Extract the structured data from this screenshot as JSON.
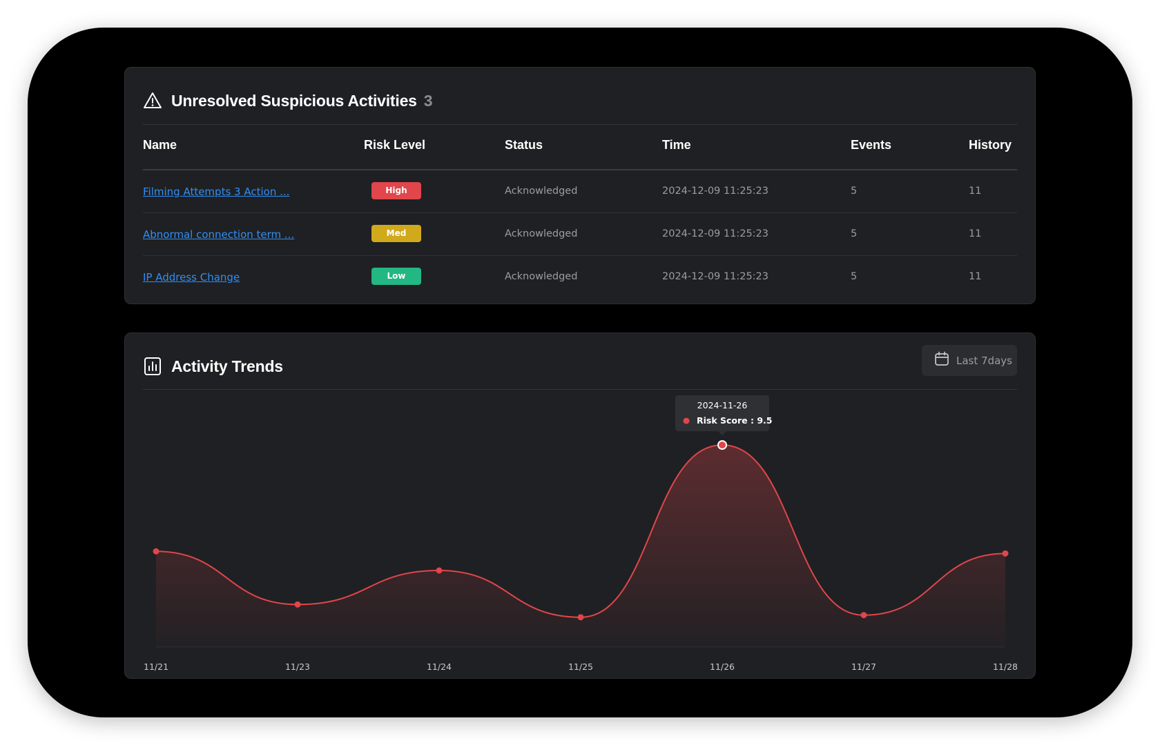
{
  "suspicious": {
    "title": "Unresolved Suspicious Activities",
    "count": "3",
    "columns": [
      "Name",
      "Risk Level",
      "Status",
      "Time",
      "Events",
      "History"
    ],
    "rows": [
      {
        "name": "Filming Attempts 3 Action ...",
        "risk": "High",
        "risk_color": "#e0464b",
        "status": "Acknowledged",
        "time": "2024-12-09 11:25:23",
        "events": "5",
        "history": "11"
      },
      {
        "name": "Abnormal connection term ...",
        "risk": "Med",
        "risk_color": "#d1aa1c",
        "status": "Acknowledged",
        "time": "2024-12-09 11:25:23",
        "events": "5",
        "history": "11"
      },
      {
        "name": "IP Address Change",
        "risk": "Low",
        "risk_color": "#22b783",
        "status": "Acknowledged",
        "time": "2024-12-09 11:25:23",
        "events": "5",
        "history": "11"
      }
    ]
  },
  "trends": {
    "title": "Activity Trends",
    "range_label": "Last 7days",
    "tooltip": {
      "date": "2024-11-26",
      "label": "Risk Score : 9.5"
    }
  },
  "chart_data": {
    "type": "area",
    "categories": [
      "11/21",
      "11/23",
      "11/24",
      "11/25",
      "11/26",
      "11/27",
      "11/28"
    ],
    "series": [
      {
        "name": "Risk Score",
        "values": [
          4.5,
          2.0,
          3.6,
          1.4,
          9.5,
          1.5,
          4.4
        ]
      }
    ],
    "ylim": [
      0,
      12
    ],
    "line_color": "#e0464b",
    "grid": false,
    "highlighted_category": "11/26"
  }
}
